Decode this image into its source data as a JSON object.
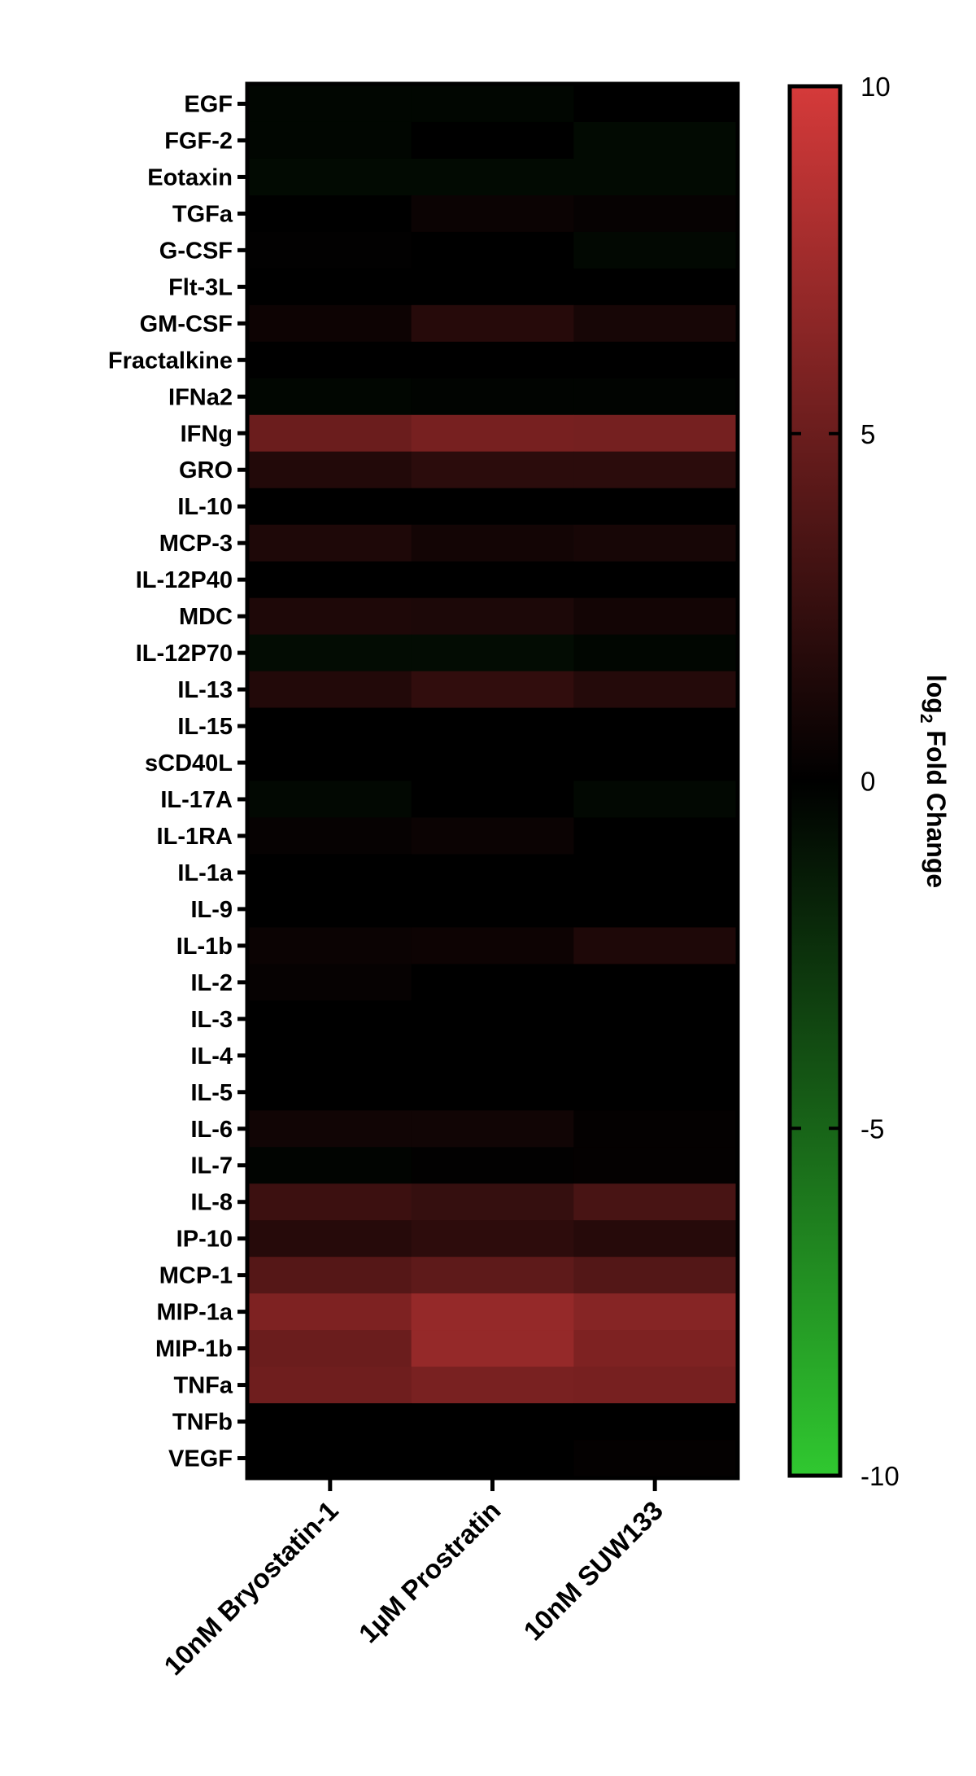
{
  "chart_data": {
    "type": "heatmap",
    "title": "",
    "rows": [
      "EGF",
      "FGF-2",
      "Eotaxin",
      "TGFa",
      "G-CSF",
      "Flt-3L",
      "GM-CSF",
      "Fractalkine",
      "IFNa2",
      "IFNg",
      "GRO",
      "IL-10",
      "MCP-3",
      "IL-12P40",
      "MDC",
      "IL-12P70",
      "IL-13",
      "IL-15",
      "sCD40L",
      "IL-17A",
      "IL-1RA",
      "IL-1a",
      "IL-9",
      "IL-1b",
      "IL-2",
      "IL-3",
      "IL-4",
      "IL-5",
      "IL-6",
      "IL-7",
      "IL-8",
      "IP-10",
      "MCP-1",
      "MIP-1a",
      "MIP-1b",
      "TNFa",
      "TNFb",
      "VEGF"
    ],
    "columns": [
      "10nM Bryostatin-1",
      "1µM Prostratin",
      "10nM SUW133"
    ],
    "values": [
      [
        -0.3,
        -0.3,
        0
      ],
      [
        -0.3,
        0,
        -0.5
      ],
      [
        -0.5,
        -0.5,
        -0.5
      ],
      [
        0,
        0.5,
        0.3
      ],
      [
        0.1,
        0,
        -0.4
      ],
      [
        0,
        0,
        0
      ],
      [
        0.6,
        1.8,
        1.1
      ],
      [
        0,
        0,
        0
      ],
      [
        -0.3,
        -0.2,
        -0.2
      ],
      [
        5.0,
        5.6,
        5.5
      ],
      [
        1.6,
        2.0,
        2.0
      ],
      [
        0,
        0,
        0
      ],
      [
        1.4,
        0.9,
        1.1
      ],
      [
        0,
        0,
        0
      ],
      [
        1.4,
        1.3,
        0.9
      ],
      [
        -0.6,
        -0.6,
        -0.3
      ],
      [
        1.6,
        2.3,
        1.7
      ],
      [
        0,
        0,
        0
      ],
      [
        0,
        0,
        0
      ],
      [
        -0.4,
        0,
        -0.4
      ],
      [
        0.3,
        0.5,
        0
      ],
      [
        0,
        0,
        0
      ],
      [
        0,
        0,
        0
      ],
      [
        0.5,
        0.6,
        1.4
      ],
      [
        0.3,
        0,
        0
      ],
      [
        0,
        0,
        0
      ],
      [
        0,
        0,
        0
      ],
      [
        0,
        0,
        0
      ],
      [
        0.8,
        0.8,
        0.2
      ],
      [
        -0.2,
        0.1,
        0.2
      ],
      [
        2.8,
        2.5,
        3.4
      ],
      [
        1.8,
        2.1,
        1.8
      ],
      [
        4.0,
        4.4,
        3.9
      ],
      [
        5.9,
        7.0,
        6.3
      ],
      [
        5.0,
        7.0,
        5.9
      ],
      [
        5.2,
        5.7,
        5.6
      ],
      [
        0,
        0,
        0
      ],
      [
        0,
        0,
        0.2
      ]
    ],
    "colorbar": {
      "label_prefix": "log",
      "label_subscript": "2",
      "label_suffix": " Fold Change",
      "range": [
        -10,
        10
      ],
      "ticks": [
        "10",
        "5",
        "0",
        "-5",
        "-10"
      ],
      "tick_values": [
        10,
        5,
        0,
        -5,
        -10
      ],
      "colors": {
        "high": "#d53a3a",
        "mid": "#000000",
        "low": "#30c830"
      }
    }
  }
}
